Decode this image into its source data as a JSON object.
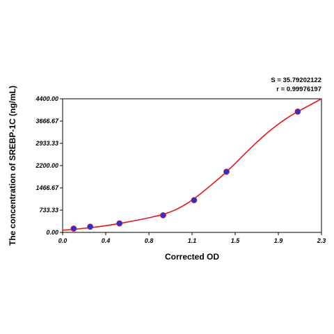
{
  "chart_data": {
    "type": "scatter",
    "title": "",
    "xlabel": "Corrected OD",
    "ylabel": "The concentration of SREBP-1C (ng/mL)",
    "xlim": [
      0.0,
      2.3
    ],
    "ylim": [
      0.0,
      4400.0
    ],
    "x_ticks": [
      "0.0",
      "0.4",
      "0.8",
      "1.1",
      "1.5",
      "1.9",
      "2.3"
    ],
    "x_tick_values": [
      0.0,
      0.383,
      0.767,
      1.15,
      1.533,
      1.917,
      2.3
    ],
    "y_ticks": [
      "0.00",
      "733.33",
      "1466.67",
      "2200.00",
      "2933.33",
      "3666.67",
      "4400.00"
    ],
    "y_tick_values": [
      0.0,
      733.33,
      1466.67,
      2200.0,
      2933.33,
      3666.67,
      4400.0
    ],
    "grid": false,
    "stats": {
      "s_label": "S = 35.79202122",
      "r_label": "r = 0.99976197"
    },
    "points": {
      "name": "",
      "x": [
        0.098,
        0.245,
        0.505,
        0.893,
        1.168,
        1.456,
        2.089
      ],
      "y": [
        125,
        188,
        297,
        563,
        1063,
        2000,
        3978
      ],
      "color": "#2233dd"
    },
    "fit_curve": {
      "name": "",
      "x": [
        0.0,
        0.1,
        0.2,
        0.3,
        0.4,
        0.5,
        0.6,
        0.7,
        0.8,
        0.9,
        1.0,
        1.1,
        1.2,
        1.3,
        1.4,
        1.5,
        1.6,
        1.7,
        1.8,
        1.9,
        2.0,
        2.1,
        2.2,
        2.3
      ],
      "y": [
        75,
        100,
        140,
        180,
        230,
        290,
        360,
        430,
        510,
        600,
        740,
        940,
        1200,
        1500,
        1810,
        2150,
        2520,
        2880,
        3220,
        3520,
        3780,
        4000,
        4200,
        4400
      ],
      "color": "#ee1111"
    }
  }
}
